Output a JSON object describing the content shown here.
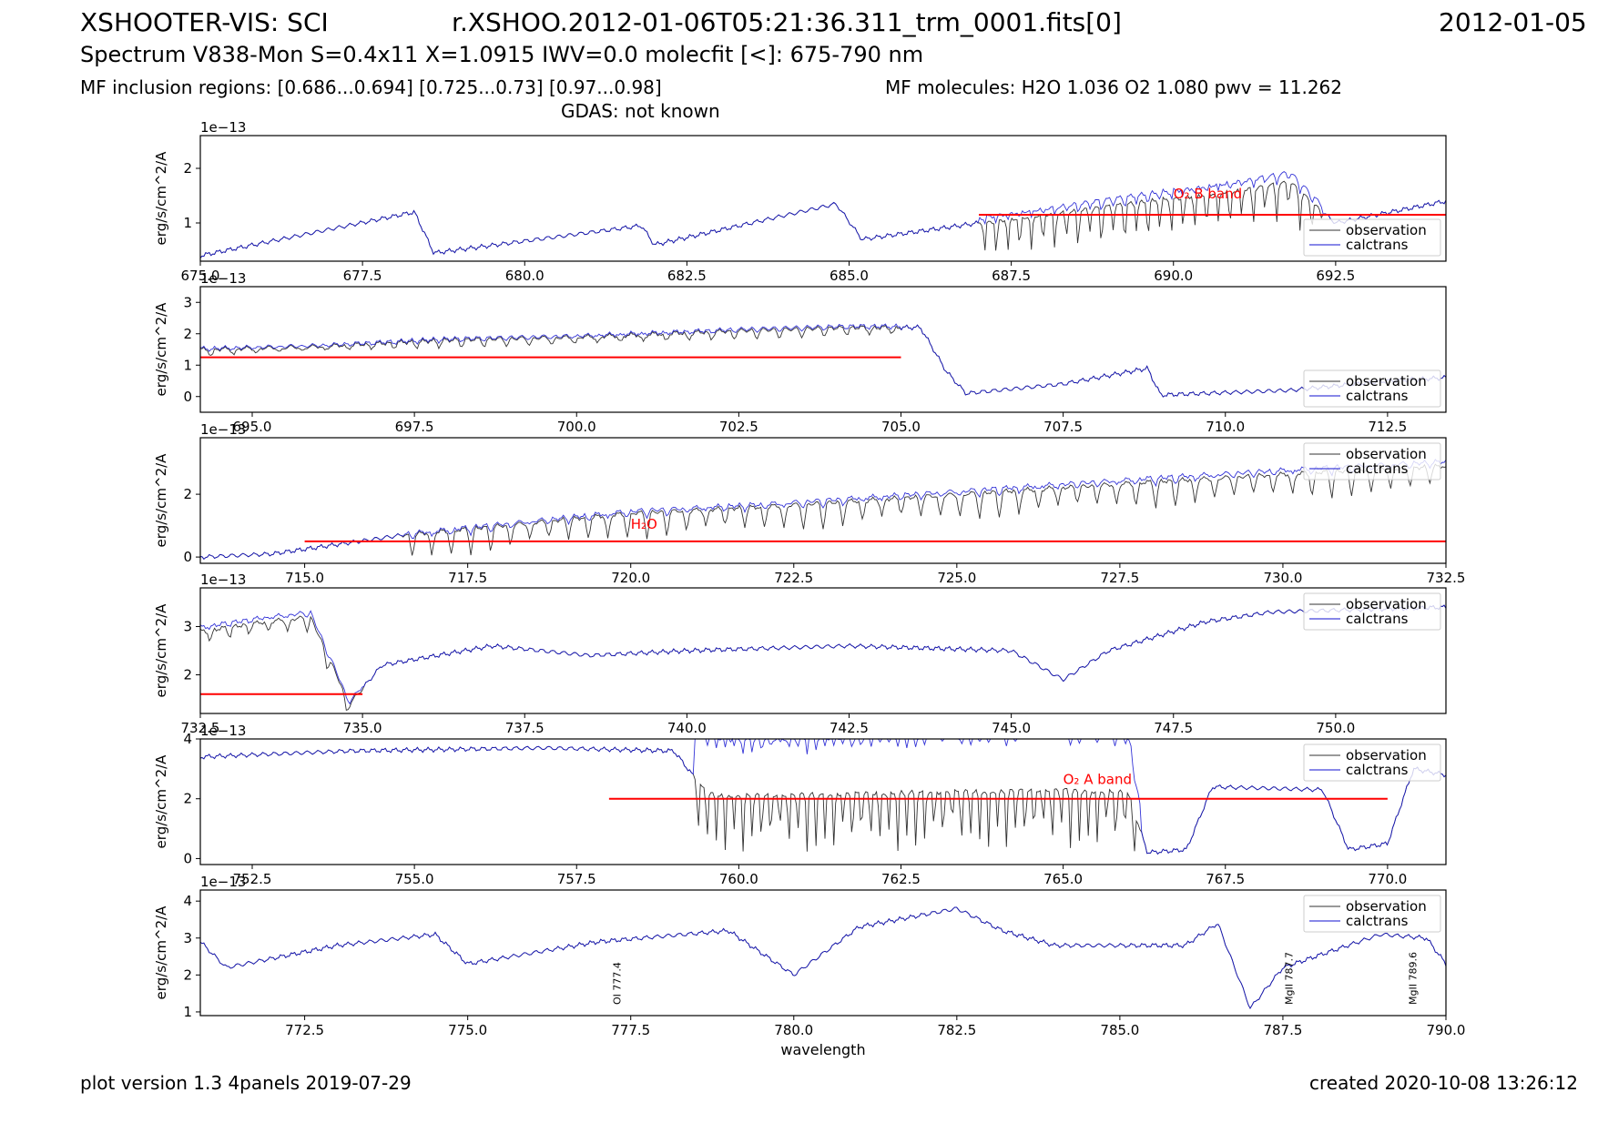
{
  "header": {
    "instrument": "XSHOOTER-VIS: SCI",
    "filename": "r.XSHOO.2012-01-06T05:21:36.311_trm_0001.fits[0]",
    "date": "2012-01-05",
    "subtitle": "Spectrum V838-Mon S=0.4x11 X=1.0915 IWV=0.0 molecfit [<]: 675-790 nm",
    "inclusion": "MF inclusion regions:  [0.686...0.694]  [0.725...0.73]  [0.97...0.98]",
    "molecules": "MF molecules: H2O 1.036 O2 1.080 pwv = 11.262",
    "gdas": "GDAS: not known"
  },
  "footer": {
    "version": "plot version 1.3 4panels  2019-07-29",
    "created": "created 2020-10-08 13:26:12"
  },
  "colors": {
    "observation": "#333333",
    "calctrans": "#1010d0",
    "region": "#ff0000",
    "annotation": "#ff0000"
  },
  "chart_data": [
    {
      "type": "line",
      "ylabel": "erg/s/cm^2/A",
      "scale_label": "1e−13",
      "xlim": [
        675.0,
        694.2
      ],
      "ylim": [
        0.3,
        2.6
      ],
      "xticks": [
        675.0,
        677.5,
        680.0,
        682.5,
        685.0,
        687.5,
        690.0,
        692.5
      ],
      "xtick_labels": [
        "675.0",
        "677.5",
        "680.0",
        "682.5",
        "685.0",
        "687.5",
        "690.0",
        "692.5"
      ],
      "yticks": [
        1,
        2
      ],
      "ytick_labels": [
        "1",
        "2"
      ],
      "legend": [
        "observation",
        "calctrans"
      ],
      "legend_position": "lower-right",
      "region_line": {
        "x0": 687.0,
        "x1": 694.2,
        "y": 1.15
      },
      "annotations": [
        {
          "text": "O₂ B band",
          "x": 690.0,
          "y": 1.45
        }
      ],
      "anchors": [
        [
          675.0,
          0.4
        ],
        [
          678.3,
          1.2
        ],
        [
          678.6,
          0.45
        ],
        [
          681.8,
          0.95
        ],
        [
          682.0,
          0.6
        ],
        [
          684.8,
          1.35
        ],
        [
          685.2,
          0.7
        ],
        [
          687.0,
          1.0
        ],
        [
          689.0,
          1.3
        ],
        [
          691.0,
          1.6
        ],
        [
          691.8,
          1.75
        ],
        [
          692.2,
          1.3
        ],
        [
          692.5,
          1.0
        ],
        [
          694.2,
          1.4
        ]
      ],
      "absorption": [
        {
          "x0": 687.0,
          "x1": 692.3,
          "depth": 0.7,
          "period": 0.18
        }
      ],
      "calctrans_boost": 1.1
    },
    {
      "type": "line",
      "ylabel": "erg/s/cm^2/A",
      "scale_label": "1e−13",
      "xlim": [
        694.2,
        713.4
      ],
      "ylim": [
        -0.5,
        3.5
      ],
      "xticks": [
        695.0,
        697.5,
        700.0,
        702.5,
        705.0,
        707.5,
        710.0,
        712.5
      ],
      "xtick_labels": [
        "695.0",
        "697.5",
        "700.0",
        "702.5",
        "705.0",
        "707.5",
        "710.0",
        "712.5"
      ],
      "yticks": [
        0,
        1,
        2,
        3
      ],
      "ytick_labels": [
        "0",
        "1",
        "2",
        "3"
      ],
      "legend": [
        "observation",
        "calctrans"
      ],
      "legend_position": "lower-right",
      "region_line": {
        "x0": 694.2,
        "x1": 705.0,
        "y": 1.25
      },
      "annotations": [],
      "anchors": [
        [
          694.2,
          1.5
        ],
        [
          696.0,
          1.6
        ],
        [
          698.0,
          1.8
        ],
        [
          700.0,
          1.9
        ],
        [
          702.5,
          2.1
        ],
        [
          704.2,
          2.2
        ],
        [
          705.3,
          2.2
        ],
        [
          705.7,
          0.8
        ],
        [
          706.0,
          0.1
        ],
        [
          707.5,
          0.4
        ],
        [
          708.8,
          0.9
        ],
        [
          709.0,
          0.05
        ],
        [
          711.0,
          0.2
        ],
        [
          712.5,
          0.5
        ],
        [
          713.4,
          0.6
        ]
      ],
      "absorption": [
        {
          "x0": 694.2,
          "x1": 705.0,
          "depth": 0.25,
          "period": 0.35
        }
      ],
      "calctrans_boost": 1.02
    },
    {
      "type": "line",
      "ylabel": "erg/s/cm^2/A",
      "scale_label": "1e−13",
      "xlim": [
        713.4,
        732.5
      ],
      "ylim": [
        -0.2,
        3.8
      ],
      "xticks": [
        715.0,
        717.5,
        720.0,
        722.5,
        725.0,
        727.5,
        730.0,
        732.5
      ],
      "xtick_labels": [
        "715.0",
        "717.5",
        "720.0",
        "722.5",
        "725.0",
        "727.5",
        "730.0",
        "732.5"
      ],
      "yticks": [
        0,
        2
      ],
      "ytick_labels": [
        "0",
        "2"
      ],
      "legend": [
        "observation",
        "calctrans"
      ],
      "legend_position": "upper-right",
      "region_line": {
        "x0": 715.0,
        "x1": 732.5,
        "y": 0.5
      },
      "annotations": [
        {
          "text": "H₂O",
          "x": 720.0,
          "y": 0.9
        }
      ],
      "anchors": [
        [
          713.4,
          0.0
        ],
        [
          714.5,
          0.1
        ],
        [
          715.5,
          0.4
        ],
        [
          716.5,
          0.7
        ],
        [
          718.0,
          1.0
        ],
        [
          720.0,
          1.4
        ],
        [
          722.0,
          1.6
        ],
        [
          725.0,
          2.0
        ],
        [
          728.0,
          2.4
        ],
        [
          730.5,
          2.7
        ],
        [
          732.5,
          2.9
        ]
      ],
      "absorption": [
        {
          "x0": 716.5,
          "x1": 732.5,
          "depth": 0.8,
          "period": 0.3
        }
      ],
      "calctrans_boost": 1.05
    },
    {
      "type": "line",
      "ylabel": "erg/s/cm^2/A",
      "scale_label": "1e−13",
      "xlim": [
        732.5,
        751.7
      ],
      "ylim": [
        1.2,
        3.8
      ],
      "xticks": [
        732.5,
        735.0,
        737.5,
        740.0,
        742.5,
        745.0,
        747.5,
        750.0
      ],
      "xtick_labels": [
        "732.5",
        "735.0",
        "737.5",
        "740.0",
        "742.5",
        "745.0",
        "747.5",
        "750.0"
      ],
      "yticks": [
        2,
        3
      ],
      "ytick_labels": [
        "2",
        "3"
      ],
      "legend": [
        "observation",
        "calctrans"
      ],
      "legend_position": "upper-right",
      "region_line": {
        "x0": 732.5,
        "x1": 735.0,
        "y": 1.6
      },
      "annotations": [],
      "anchors": [
        [
          732.5,
          2.9
        ],
        [
          733.5,
          3.1
        ],
        [
          734.2,
          3.2
        ],
        [
          734.8,
          1.4
        ],
        [
          735.3,
          2.2
        ],
        [
          737.0,
          2.6
        ],
        [
          738.5,
          2.4
        ],
        [
          740.0,
          2.5
        ],
        [
          742.5,
          2.6
        ],
        [
          745.0,
          2.5
        ],
        [
          745.8,
          1.9
        ],
        [
          746.5,
          2.5
        ],
        [
          748.0,
          3.1
        ],
        [
          749.0,
          3.3
        ],
        [
          751.7,
          3.4
        ]
      ],
      "absorption": [
        {
          "x0": 732.5,
          "x1": 735.0,
          "depth": 0.3,
          "period": 0.3
        }
      ],
      "calctrans_boost": 1.03
    },
    {
      "type": "line",
      "ylabel": "erg/s/cm^2/A",
      "scale_label": "1e−13",
      "xlim": [
        751.7,
        770.9
      ],
      "ylim": [
        -0.2,
        4.0
      ],
      "xticks": [
        752.5,
        755.0,
        757.5,
        760.0,
        762.5,
        765.0,
        767.5,
        770.0
      ],
      "xtick_labels": [
        "752.5",
        "755.0",
        "757.5",
        "760.0",
        "762.5",
        "765.0",
        "767.5",
        "770.0"
      ],
      "yticks": [
        0,
        2,
        4
      ],
      "ytick_labels": [
        "0",
        "2",
        "4"
      ],
      "legend": [
        "observation",
        "calctrans"
      ],
      "legend_position": "upper-right",
      "region_line": {
        "x0": 758.0,
        "x1": 770.0,
        "y": 2.0
      },
      "annotations": [
        {
          "text": "O₂ A band",
          "x": 765.0,
          "y": 2.5
        }
      ],
      "anchors": [
        [
          751.7,
          3.4
        ],
        [
          754.0,
          3.6
        ],
        [
          757.0,
          3.7
        ],
        [
          759.0,
          3.6
        ],
        [
          759.5,
          2.2
        ],
        [
          760.0,
          2.1
        ],
        [
          765.0,
          2.3
        ],
        [
          766.0,
          2.2
        ],
        [
          766.3,
          0.2
        ],
        [
          766.9,
          0.3
        ],
        [
          767.3,
          2.4
        ],
        [
          769.0,
          2.3
        ],
        [
          769.4,
          0.3
        ],
        [
          770.0,
          0.5
        ],
        [
          770.4,
          3.0
        ],
        [
          770.9,
          2.8
        ]
      ],
      "absorption": [
        {
          "x0": 759.3,
          "x1": 766.2,
          "depth": 2.0,
          "period": 0.14
        }
      ],
      "calctrans_boost": 1.9
    },
    {
      "type": "line",
      "ylabel": "erg/s/cm^2/A",
      "xlabel": "wavelength",
      "scale_label": "1e−13",
      "xlim": [
        770.9,
        790.0
      ],
      "ylim": [
        0.9,
        4.3
      ],
      "xticks": [
        772.5,
        775.0,
        777.5,
        780.0,
        782.5,
        785.0,
        787.5,
        790.0
      ],
      "xtick_labels": [
        "772.5",
        "775.0",
        "777.5",
        "780.0",
        "782.5",
        "785.0",
        "787.5",
        "790.0"
      ],
      "yticks": [
        1,
        2,
        3,
        4
      ],
      "ytick_labels": [
        "1",
        "2",
        "3",
        "4"
      ],
      "legend": [
        "observation",
        "calctrans"
      ],
      "legend_position": "upper-right",
      "region_line": null,
      "annotations": [],
      "line_ids": [
        {
          "text": "OI 777.4",
          "x": 777.4
        },
        {
          "text": "MgII 787.7",
          "x": 787.7
        },
        {
          "text": "MgII 789.6",
          "x": 789.6
        }
      ],
      "anchors": [
        [
          770.9,
          2.9
        ],
        [
          771.3,
          2.2
        ],
        [
          773.0,
          2.8
        ],
        [
          774.5,
          3.1
        ],
        [
          775.0,
          2.3
        ],
        [
          777.0,
          2.9
        ],
        [
          779.0,
          3.2
        ],
        [
          780.0,
          2.0
        ],
        [
          781.0,
          3.3
        ],
        [
          782.5,
          3.8
        ],
        [
          783.2,
          3.2
        ],
        [
          784.0,
          2.8
        ],
        [
          786.0,
          2.8
        ],
        [
          786.5,
          3.4
        ],
        [
          787.0,
          1.1
        ],
        [
          787.5,
          2.2
        ],
        [
          789.0,
          3.1
        ],
        [
          789.7,
          3.0
        ],
        [
          790.0,
          2.3
        ]
      ],
      "absorption": [],
      "calctrans_boost": 1.0
    }
  ]
}
